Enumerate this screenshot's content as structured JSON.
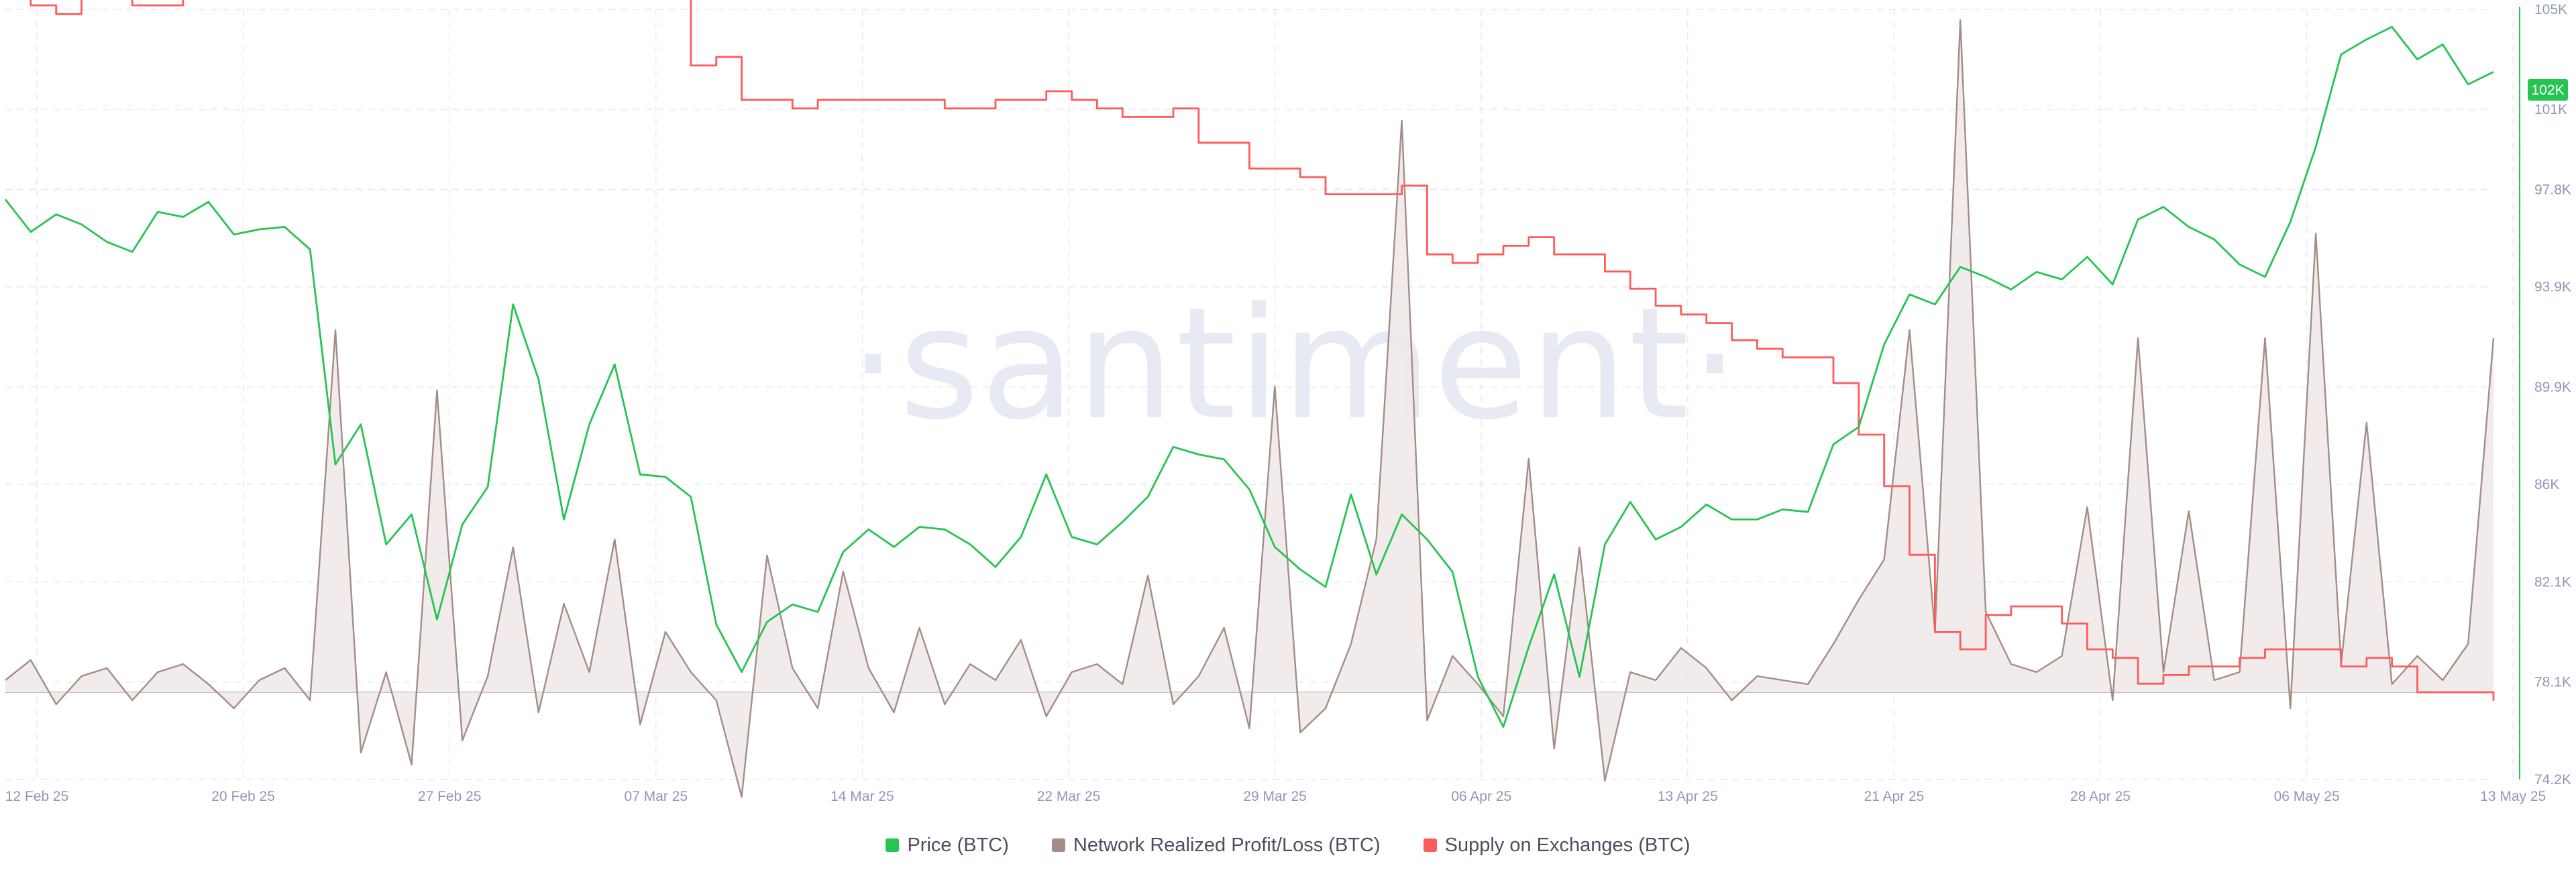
{
  "chart_data": {
    "type": "line",
    "title": "",
    "watermark": "·santiment·",
    "x_ticks": [
      "12 Feb 25",
      "20 Feb 25",
      "27 Feb 25",
      "07 Mar 25",
      "14 Mar 25",
      "22 Mar 25",
      "29 Mar 25",
      "06 Apr 25",
      "13 Apr 25",
      "21 Apr 25",
      "28 Apr 25",
      "06 May 25",
      "13 May 25"
    ],
    "y_ticks": [
      "74.2K",
      "78.1K",
      "82.1K",
      "86K",
      "89.9K",
      "93.9K",
      "97.8K",
      "101K",
      "105K"
    ],
    "y_tick_values": [
      74200,
      78100,
      82100,
      86000,
      89900,
      93900,
      97800,
      101000,
      105000
    ],
    "ylim": [
      74200,
      105000
    ],
    "current_price_badge": "102K",
    "grid": true,
    "legend_position": "bottom-center",
    "legend": [
      {
        "label": "Price (BTC)",
        "color": "#26c453"
      },
      {
        "label": "Network Realized Profit/Loss (BTC)",
        "color": "#a48d86"
      },
      {
        "label": "Supply on Exchanges (BTC)",
        "color": "#ff5b5b"
      }
    ],
    "series": [
      {
        "name": "Price (BTC)",
        "color": "#26c453",
        "axis": "right",
        "points": [
          [
            0,
            97400
          ],
          [
            1,
            96100
          ],
          [
            2,
            96800
          ],
          [
            3,
            96400
          ],
          [
            4,
            95700
          ],
          [
            5,
            95300
          ],
          [
            6,
            96900
          ],
          [
            7,
            96700
          ],
          [
            8,
            97300
          ],
          [
            9,
            96000
          ],
          [
            10,
            96200
          ],
          [
            11,
            96300
          ],
          [
            12,
            95400
          ],
          [
            13,
            86800
          ],
          [
            14,
            88400
          ],
          [
            15,
            83600
          ],
          [
            16,
            84800
          ],
          [
            17,
            80600
          ],
          [
            18,
            84400
          ],
          [
            19,
            85900
          ],
          [
            20,
            93200
          ],
          [
            21,
            90200
          ],
          [
            22,
            84600
          ],
          [
            23,
            88400
          ],
          [
            24,
            90800
          ],
          [
            25,
            86400
          ],
          [
            26,
            86300
          ],
          [
            27,
            85500
          ],
          [
            28,
            80400
          ],
          [
            29,
            78500
          ],
          [
            30,
            80500
          ],
          [
            31,
            81200
          ],
          [
            32,
            80900
          ],
          [
            33,
            83300
          ],
          [
            34,
            84200
          ],
          [
            35,
            83500
          ],
          [
            36,
            84300
          ],
          [
            37,
            84200
          ],
          [
            38,
            83600
          ],
          [
            39,
            82700
          ],
          [
            40,
            83900
          ],
          [
            41,
            86400
          ],
          [
            42,
            83900
          ],
          [
            43,
            83600
          ],
          [
            44,
            84500
          ],
          [
            45,
            85500
          ],
          [
            46,
            87500
          ],
          [
            47,
            87200
          ],
          [
            48,
            87000
          ],
          [
            49,
            85800
          ],
          [
            50,
            83500
          ],
          [
            51,
            82600
          ],
          [
            52,
            81900
          ],
          [
            53,
            85600
          ],
          [
            54,
            82400
          ],
          [
            55,
            84800
          ],
          [
            56,
            83800
          ],
          [
            57,
            82500
          ],
          [
            58,
            78300
          ],
          [
            59,
            76300
          ],
          [
            60,
            79500
          ],
          [
            61,
            82400
          ],
          [
            62,
            78300
          ],
          [
            63,
            83600
          ],
          [
            64,
            85300
          ],
          [
            65,
            83800
          ],
          [
            66,
            84300
          ],
          [
            67,
            85200
          ],
          [
            68,
            84600
          ],
          [
            69,
            84600
          ],
          [
            70,
            85000
          ],
          [
            71,
            84900
          ],
          [
            72,
            87600
          ],
          [
            73,
            88300
          ],
          [
            74,
            91600
          ],
          [
            75,
            93600
          ],
          [
            76,
            93200
          ],
          [
            77,
            94700
          ],
          [
            78,
            94300
          ],
          [
            79,
            93800
          ],
          [
            80,
            94500
          ],
          [
            81,
            94200
          ],
          [
            82,
            95100
          ],
          [
            83,
            94000
          ],
          [
            84,
            96600
          ],
          [
            85,
            97100
          ],
          [
            86,
            96300
          ],
          [
            87,
            95800
          ],
          [
            88,
            94800
          ],
          [
            89,
            94300
          ],
          [
            90,
            96500
          ],
          [
            91,
            99500
          ],
          [
            92,
            103200
          ],
          [
            93,
            103800
          ],
          [
            94,
            104300
          ],
          [
            95,
            103000
          ],
          [
            96,
            103600
          ],
          [
            97,
            102000
          ],
          [
            98,
            102500
          ]
        ]
      },
      {
        "name": "Network Realized Profit/Loss (BTC)",
        "color": "#a48d86",
        "axis": "left",
        "points": [
          [
            0,
            0.3
          ],
          [
            1,
            0.8
          ],
          [
            2,
            -0.3
          ],
          [
            3,
            0.4
          ],
          [
            4,
            0.6
          ],
          [
            5,
            -0.2
          ],
          [
            6,
            0.5
          ],
          [
            7,
            0.7
          ],
          [
            8,
            0.2
          ],
          [
            9,
            -0.4
          ],
          [
            10,
            0.3
          ],
          [
            11,
            0.6
          ],
          [
            12,
            -0.2
          ],
          [
            13,
            9.0
          ],
          [
            14,
            -1.5
          ],
          [
            15,
            0.5
          ],
          [
            16,
            -1.8
          ],
          [
            17,
            7.5
          ],
          [
            18,
            -1.2
          ],
          [
            19,
            0.4
          ],
          [
            20,
            3.6
          ],
          [
            21,
            -0.5
          ],
          [
            22,
            2.2
          ],
          [
            23,
            0.5
          ],
          [
            24,
            3.8
          ],
          [
            25,
            -0.8
          ],
          [
            26,
            1.5
          ],
          [
            27,
            0.5
          ],
          [
            28,
            -0.2
          ],
          [
            29,
            -2.6
          ],
          [
            30,
            3.4
          ],
          [
            31,
            0.6
          ],
          [
            32,
            -0.4
          ],
          [
            33,
            3.0
          ],
          [
            34,
            0.6
          ],
          [
            35,
            -0.5
          ],
          [
            36,
            1.6
          ],
          [
            37,
            -0.3
          ],
          [
            38,
            0.7
          ],
          [
            39,
            0.3
          ],
          [
            40,
            1.3
          ],
          [
            41,
            -0.6
          ],
          [
            42,
            0.5
          ],
          [
            43,
            0.7
          ],
          [
            44,
            0.2
          ],
          [
            45,
            2.9
          ],
          [
            46,
            -0.3
          ],
          [
            47,
            0.4
          ],
          [
            48,
            1.6
          ],
          [
            49,
            -0.9
          ],
          [
            50,
            7.6
          ],
          [
            51,
            -1.0
          ],
          [
            52,
            -0.4
          ],
          [
            53,
            1.2
          ],
          [
            54,
            3.8
          ],
          [
            55,
            14.2
          ],
          [
            56,
            -0.7
          ],
          [
            57,
            0.9
          ],
          [
            58,
            0.2
          ],
          [
            59,
            -0.6
          ],
          [
            60,
            5.8
          ],
          [
            61,
            -1.4
          ],
          [
            62,
            3.6
          ],
          [
            63,
            -2.2
          ],
          [
            64,
            0.5
          ],
          [
            65,
            0.3
          ],
          [
            66,
            1.1
          ],
          [
            67,
            0.6
          ],
          [
            68,
            -0.2
          ],
          [
            69,
            0.4
          ],
          [
            70,
            0.3
          ],
          [
            71,
            0.2
          ],
          [
            72,
            1.2
          ],
          [
            73,
            2.3
          ],
          [
            74,
            3.3
          ],
          [
            75,
            9.0
          ],
          [
            76,
            1.5
          ],
          [
            77,
            16.7
          ],
          [
            78,
            2.0
          ],
          [
            79,
            0.7
          ],
          [
            80,
            0.5
          ],
          [
            81,
            0.9
          ],
          [
            82,
            4.6
          ],
          [
            83,
            -0.2
          ],
          [
            84,
            8.8
          ],
          [
            85,
            0.5
          ],
          [
            86,
            4.5
          ],
          [
            87,
            0.3
          ],
          [
            88,
            0.5
          ],
          [
            89,
            8.8
          ],
          [
            90,
            -0.4
          ],
          [
            91,
            11.4
          ],
          [
            92,
            0.7
          ],
          [
            93,
            6.7
          ],
          [
            94,
            0.2
          ],
          [
            95,
            0.9
          ],
          [
            96,
            0.3
          ],
          [
            97,
            1.2
          ],
          [
            98,
            8.8
          ]
        ]
      },
      {
        "name": "Supply on Exchanges (BTC)",
        "color": "#ff5b5b",
        "axis": "left",
        "points": [
          [
            0,
            2.79
          ],
          [
            1,
            2.77
          ],
          [
            2,
            2.76
          ],
          [
            3,
            2.78
          ],
          [
            4,
            2.78
          ],
          [
            5,
            2.77
          ],
          [
            6,
            2.77
          ],
          [
            7,
            2.82
          ],
          [
            8,
            2.86
          ],
          [
            9,
            2.86
          ],
          [
            10,
            2.86
          ],
          [
            11,
            2.84
          ],
          [
            12,
            2.83
          ],
          [
            13,
            2.83
          ],
          [
            14,
            2.85
          ],
          [
            15,
            2.85
          ],
          [
            16,
            2.87
          ],
          [
            17,
            2.87
          ],
          [
            18,
            2.87
          ],
          [
            19,
            2.86
          ],
          [
            20,
            2.85
          ],
          [
            21,
            2.86
          ],
          [
            22,
            2.85
          ],
          [
            23,
            2.85
          ],
          [
            24,
            2.82
          ],
          [
            25,
            2.82
          ],
          [
            26,
            2.8
          ],
          [
            27,
            2.7
          ],
          [
            28,
            2.71
          ],
          [
            29,
            2.66
          ],
          [
            30,
            2.66
          ],
          [
            31,
            2.65
          ],
          [
            32,
            2.66
          ],
          [
            33,
            2.66
          ],
          [
            34,
            2.66
          ],
          [
            35,
            2.66
          ],
          [
            36,
            2.66
          ],
          [
            37,
            2.65
          ],
          [
            38,
            2.65
          ],
          [
            39,
            2.66
          ],
          [
            40,
            2.66
          ],
          [
            41,
            2.67
          ],
          [
            42,
            2.66
          ],
          [
            43,
            2.65
          ],
          [
            44,
            2.64
          ],
          [
            45,
            2.64
          ],
          [
            46,
            2.65
          ],
          [
            47,
            2.61
          ],
          [
            48,
            2.61
          ],
          [
            49,
            2.58
          ],
          [
            50,
            2.58
          ],
          [
            51,
            2.57
          ],
          [
            52,
            2.55
          ],
          [
            53,
            2.55
          ],
          [
            54,
            2.55
          ],
          [
            55,
            2.56
          ],
          [
            56,
            2.48
          ],
          [
            57,
            2.47
          ],
          [
            58,
            2.48
          ],
          [
            59,
            2.49
          ],
          [
            60,
            2.5
          ],
          [
            61,
            2.48
          ],
          [
            62,
            2.48
          ],
          [
            63,
            2.46
          ],
          [
            64,
            2.44
          ],
          [
            65,
            2.42
          ],
          [
            66,
            2.41
          ],
          [
            67,
            2.4
          ],
          [
            68,
            2.38
          ],
          [
            69,
            2.37
          ],
          [
            70,
            2.36
          ],
          [
            71,
            2.36
          ],
          [
            72,
            2.33
          ],
          [
            73,
            2.27
          ],
          [
            74,
            2.21
          ],
          [
            75,
            2.13
          ],
          [
            76,
            2.04
          ],
          [
            77,
            2.02
          ],
          [
            78,
            2.06
          ],
          [
            79,
            2.07
          ],
          [
            80,
            2.07
          ],
          [
            81,
            2.05
          ],
          [
            82,
            2.02
          ],
          [
            83,
            2.01
          ],
          [
            84,
            1.98
          ],
          [
            85,
            1.99
          ],
          [
            86,
            2.0
          ],
          [
            87,
            2.0
          ],
          [
            88,
            2.01
          ],
          [
            89,
            2.02
          ],
          [
            90,
            2.02
          ],
          [
            91,
            2.02
          ],
          [
            92,
            2.0
          ],
          [
            93,
            2.01
          ],
          [
            94,
            2.0
          ],
          [
            95,
            1.97
          ],
          [
            96,
            1.97
          ],
          [
            97,
            1.97
          ],
          [
            98,
            1.96
          ]
        ]
      }
    ]
  }
}
